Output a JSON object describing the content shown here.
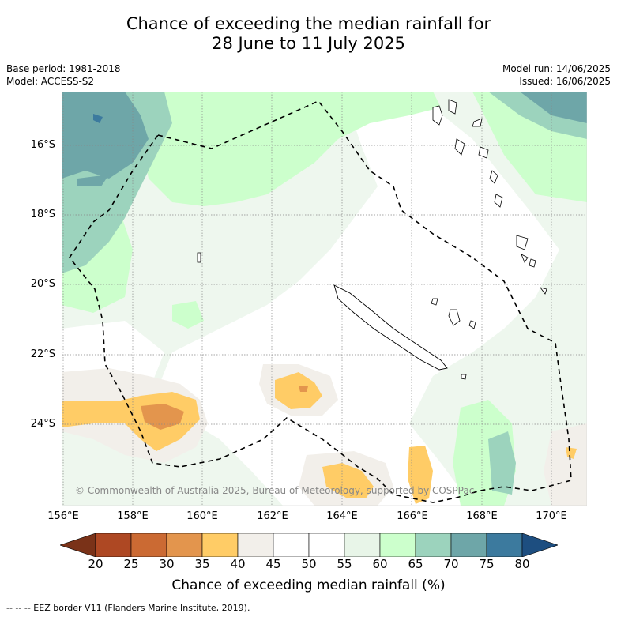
{
  "title_line1": "Chance of exceeding the median rainfall for",
  "title_line2": "28 June to 11 July 2025",
  "meta": {
    "base_period": "Base period: 1981-2018",
    "model": "Model: ACCESS-S2",
    "model_run": "Model run: 14/06/2025",
    "issued": "Issued: 16/06/2025"
  },
  "lat_labels": [
    "16°S",
    "18°S",
    "20°S",
    "22°S",
    "24°S"
  ],
  "lon_labels": [
    "156°E",
    "158°E",
    "160°E",
    "162°E",
    "164°E",
    "166°E",
    "168°E",
    "170°E"
  ],
  "copyright": "© Commonwealth of Australia 2025, Bureau of Meteorology, supported by COSPPac",
  "colorbar": {
    "ticks": [
      "20",
      "25",
      "30",
      "35",
      "40",
      "45",
      "50",
      "55",
      "60",
      "65",
      "70",
      "75",
      "80"
    ],
    "colors": [
      "#7a3218",
      "#ae4823",
      "#cb6a33",
      "#e3954d",
      "#ffcc66",
      "#f2efea",
      "#ffffff",
      "#ffffff",
      "#e8f5e8",
      "#ccffcc",
      "#9cd3bd",
      "#6ea6a8",
      "#3c7a9e",
      "#1d4e80"
    ],
    "label": "Chance of exceeding median rainfall (%)"
  },
  "footer": "--  --  -- EEZ border V11 (Flanders Marine Institute, 2019)."
}
